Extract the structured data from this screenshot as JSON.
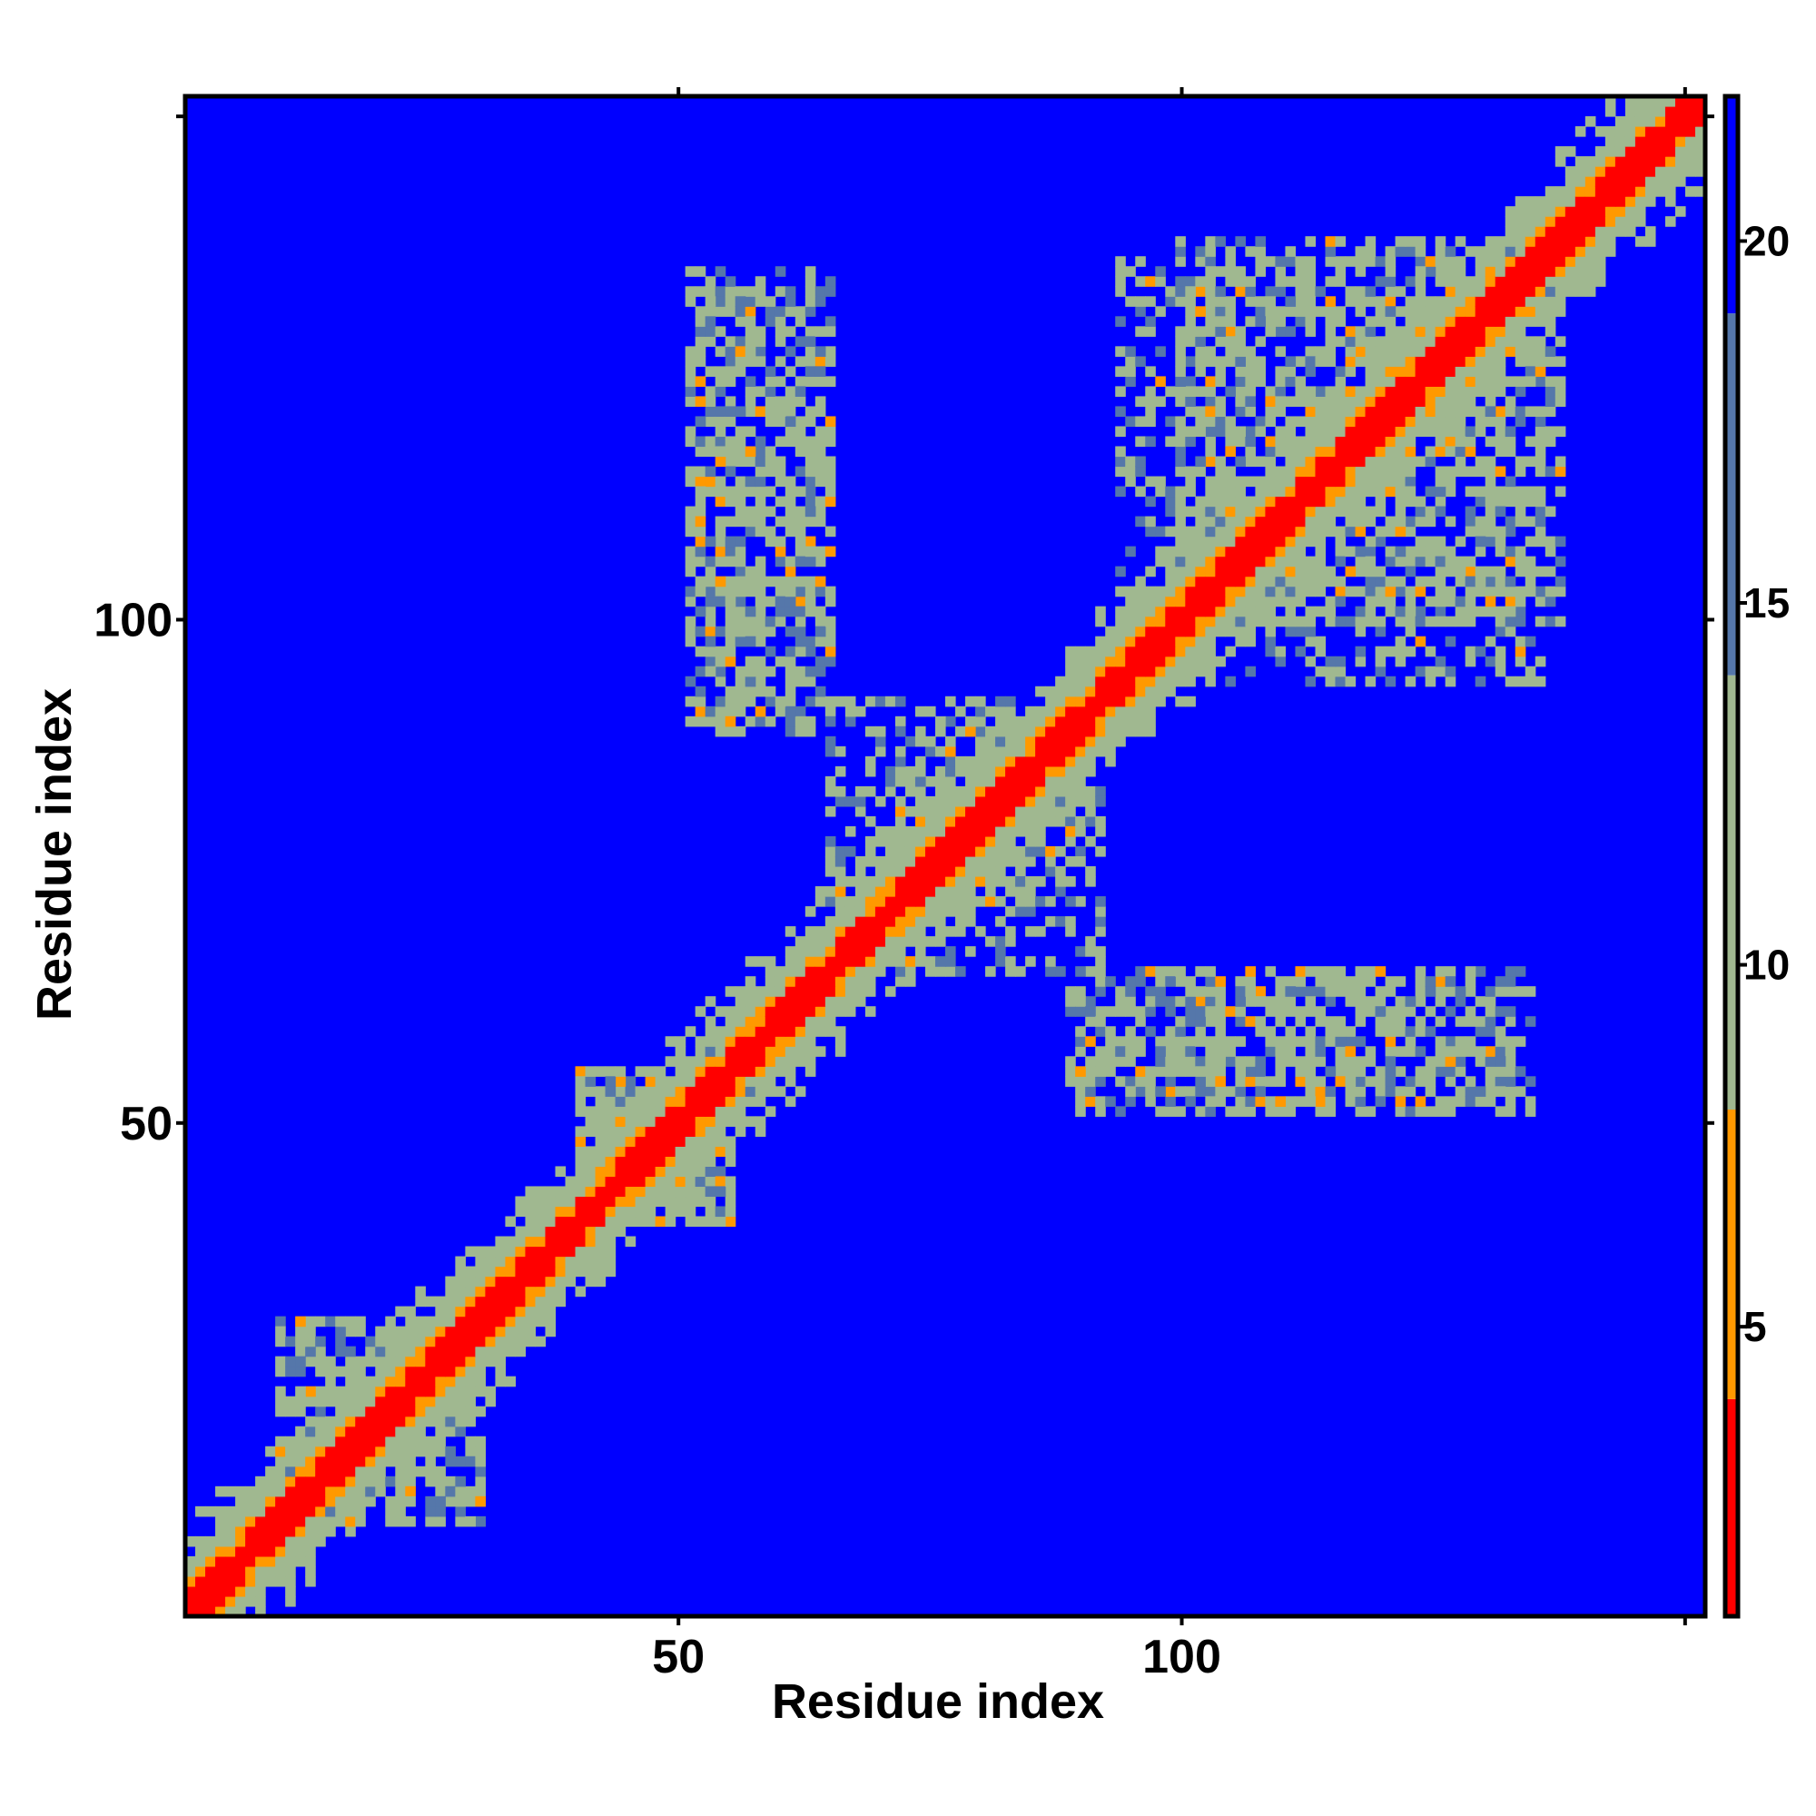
{
  "chart_data": {
    "type": "heatmap",
    "title": "",
    "xlabel": "Residue index",
    "ylabel": "Residue index",
    "xlim": [
      1,
      152
    ],
    "ylim": [
      1,
      152
    ],
    "x_ticks": [
      50,
      100
    ],
    "y_ticks": [
      50,
      100
    ],
    "colorbar": {
      "range": [
        1,
        22
      ],
      "ticks": [
        5,
        10,
        15,
        20
      ],
      "colors": {
        "low": "#ff0000",
        "mid_low": "#ff9900",
        "mid": "#a0b890",
        "high": "#5577aa",
        "background": "#0000ff"
      }
    },
    "diagonal_band": {
      "start": 1,
      "end": 152,
      "description_values": {
        "core_distance": 1,
        "near_distance": 6,
        "shoulder_distance": 12
      }
    },
    "contact_regions": [
      {
        "x_range": [
          94,
          138
        ],
        "y_range": [
          100,
          136
        ],
        "distance": 13
      },
      {
        "x_range": [
          65,
          90
        ],
        "y_range": [
          72,
          92
        ],
        "distance": 12
      },
      {
        "x_range": [
          51,
          65
        ],
        "y_range": [
          90,
          135
        ],
        "distance": 14
      },
      {
        "x_range": [
          89,
          133
        ],
        "y_range": [
          52,
          65
        ],
        "distance": 14
      },
      {
        "x_range": [
          40,
          55
        ],
        "y_range": [
          40,
          55
        ],
        "distance": 12
      },
      {
        "x_range": [
          10,
          30
        ],
        "y_range": [
          10,
          30
        ],
        "distance": 12
      }
    ]
  }
}
